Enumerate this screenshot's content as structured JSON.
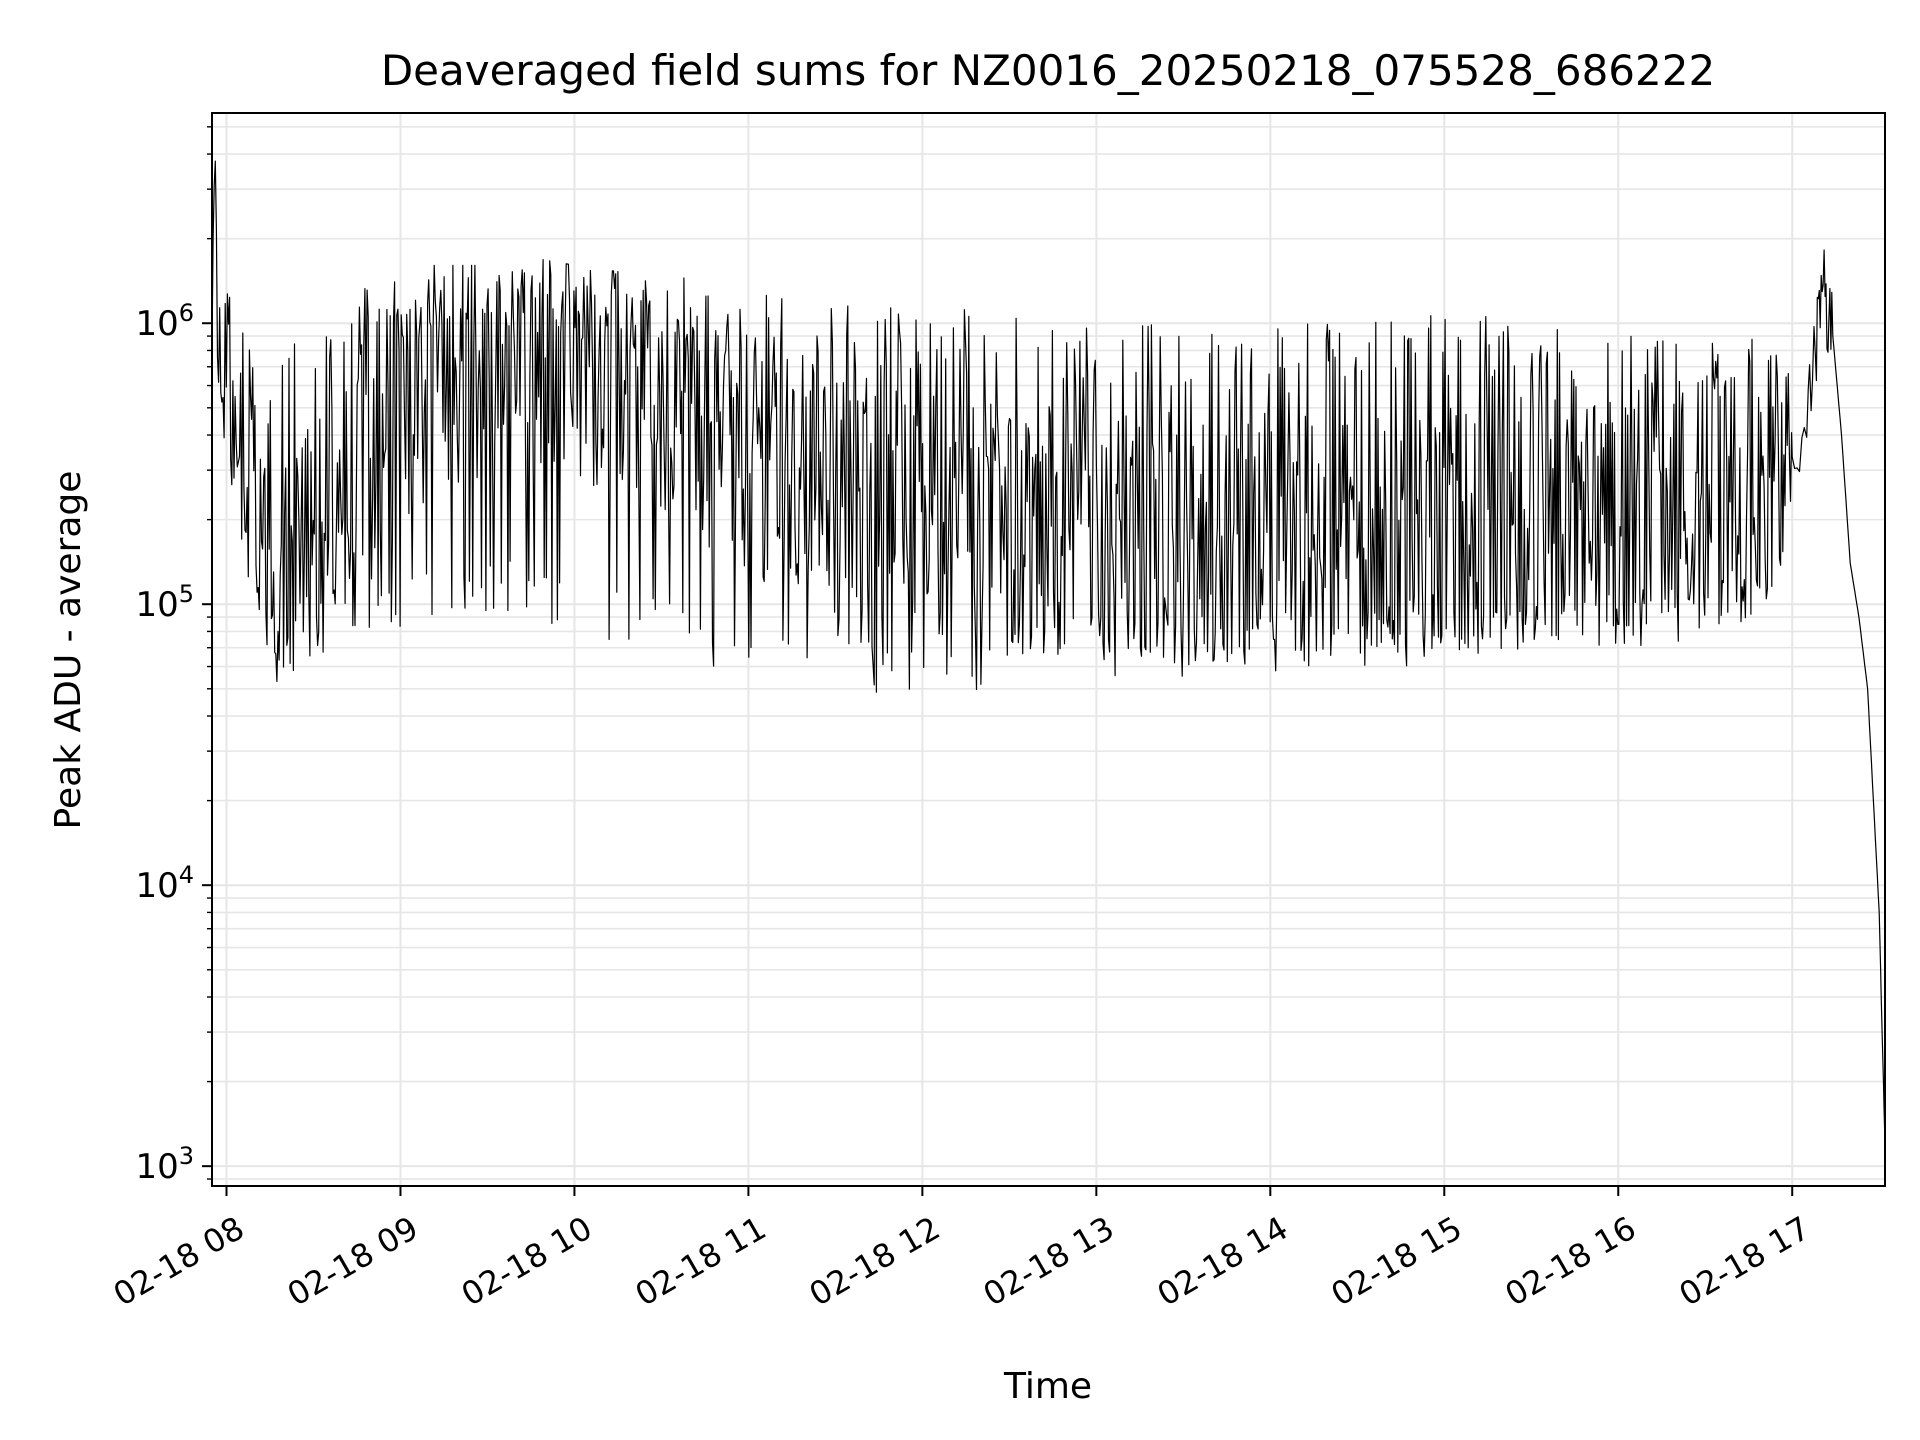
{
  "chart_data": {
    "type": "line",
    "title": "Deaveraged field sums for NZ0016_20250218_075528_686222",
    "xlabel": "Time",
    "ylabel": "Peak ADU - average",
    "yscale": "log",
    "grid": true,
    "legend": "none",
    "line_color": "#000000",
    "grid_color": "#e6e6e6",
    "xlim": [
      "2025-02-18 07:55",
      "2025-02-18 17:32"
    ],
    "ylim": [
      850,
      5600000
    ],
    "x_ticks": [
      {
        "time": "2025-02-18 08:00",
        "label": "02-18 08"
      },
      {
        "time": "2025-02-18 09:00",
        "label": "02-18 09"
      },
      {
        "time": "2025-02-18 10:00",
        "label": "02-18 10"
      },
      {
        "time": "2025-02-18 11:00",
        "label": "02-18 11"
      },
      {
        "time": "2025-02-18 12:00",
        "label": "02-18 12"
      },
      {
        "time": "2025-02-18 13:00",
        "label": "02-18 13"
      },
      {
        "time": "2025-02-18 14:00",
        "label": "02-18 14"
      },
      {
        "time": "2025-02-18 15:00",
        "label": "02-18 15"
      },
      {
        "time": "2025-02-18 16:00",
        "label": "02-18 16"
      },
      {
        "time": "2025-02-18 17:00",
        "label": "02-18 17"
      }
    ],
    "y_ticks": [
      {
        "value": 1000,
        "base": "10",
        "exp": "3"
      },
      {
        "value": 10000,
        "base": "10",
        "exp": "4"
      },
      {
        "value": 100000,
        "base": "10",
        "exp": "5"
      },
      {
        "value": 1000000,
        "base": "10",
        "exp": "6"
      }
    ],
    "series": [
      {
        "x": [
          "2025-02-18 07:55",
          "2025-02-18 07:56",
          "2025-02-18 07:57",
          "2025-02-18 07:58",
          "2025-02-18 08:00",
          "2025-02-18 08:05",
          "2025-02-18 08:10",
          "2025-02-18 08:15",
          "2025-02-18 08:20",
          "2025-02-18 08:25",
          "2025-02-18 08:30",
          "2025-02-18 08:40",
          "2025-02-18 08:50",
          "2025-02-18 09:00",
          "2025-02-18 09:15",
          "2025-02-18 09:30",
          "2025-02-18 09:45",
          "2025-02-18 10:00",
          "2025-02-18 10:20",
          "2025-02-18 10:40",
          "2025-02-18 11:00",
          "2025-02-18 11:30",
          "2025-02-18 12:00",
          "2025-02-18 12:30",
          "2025-02-18 13:00",
          "2025-02-18 13:30",
          "2025-02-18 14:00",
          "2025-02-18 14:30",
          "2025-02-18 15:00",
          "2025-02-18 15:30",
          "2025-02-18 16:00",
          "2025-02-18 16:30",
          "2025-02-18 17:00",
          "2025-02-18 17:05",
          "2025-02-18 17:08",
          "2025-02-18 17:10",
          "2025-02-18 17:12",
          "2025-02-18 17:14",
          "2025-02-18 17:17",
          "2025-02-18 17:20",
          "2025-02-18 17:23",
          "2025-02-18 17:26",
          "2025-02-18 17:28",
          "2025-02-18 17:30",
          "2025-02-18 17:31",
          "2025-02-18 17:32"
        ],
        "values": [
          800000,
          3500000,
          1500000,
          900000,
          650000,
          400000,
          250000,
          150000,
          140000,
          150000,
          170000,
          250000,
          350000,
          450000,
          700000,
          750000,
          800000,
          750000,
          650000,
          500000,
          350000,
          250000,
          200000,
          180000,
          180000,
          170000,
          170000,
          170000,
          180000,
          200000,
          230000,
          250000,
          280000,
          400000,
          800000,
          1500000,
          1100000,
          900000,
          400000,
          140000,
          90000,
          50000,
          20000,
          8000,
          3000,
          1200
        ],
        "low": [
          500000,
          1200000,
          700000,
          500000,
          400000,
          180000,
          100000,
          60000,
          55000,
          55000,
          60000,
          70000,
          80000,
          80000,
          90000,
          90000,
          90000,
          80000,
          70000,
          60000,
          55000,
          50000,
          45000,
          50000,
          55000,
          55000,
          55000,
          60000,
          60000,
          65000,
          70000,
          75000,
          90000,
          null,
          null,
          null,
          null,
          null,
          null,
          null,
          null,
          null,
          null,
          null,
          null,
          null
        ],
        "high": [
          1200000,
          3800000,
          2200000,
          1400000,
          1200000,
          1000000,
          900000,
          900000,
          1000000,
          1100000,
          1200000,
          1300000,
          1400000,
          1500000,
          1500000,
          1500000,
          1600000,
          1500000,
          1400000,
          1400000,
          1300000,
          1200000,
          1200000,
          1100000,
          1100000,
          1000000,
          1000000,
          1000000,
          1100000,
          1100000,
          1000000,
          1000000,
          800000,
          null,
          null,
          null,
          null,
          null,
          null,
          null,
          null,
          null,
          null,
          null,
          null,
          null
        ]
      }
    ]
  }
}
